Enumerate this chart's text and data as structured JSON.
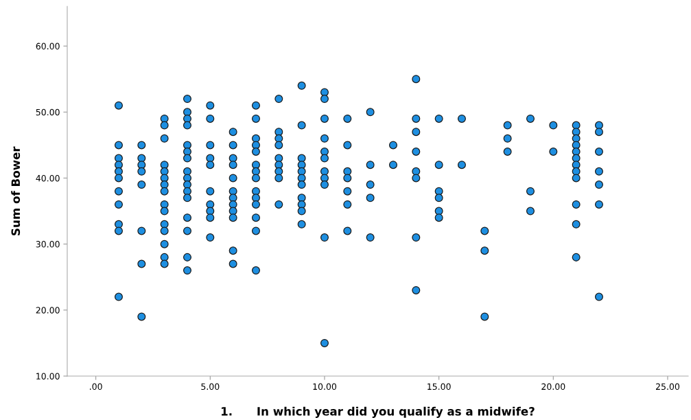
{
  "chart_data": {
    "type": "scatter",
    "xlabel": "1.      In which year did you qualify as a midwife?",
    "ylabel": "Sum of Bower",
    "series": [
      {
        "color": "#1e8fe1",
        "x": [
          1,
          1,
          1,
          1,
          1,
          1,
          1,
          1,
          1,
          1,
          1,
          2,
          2,
          2,
          2,
          2,
          2,
          2,
          2,
          3,
          3,
          3,
          3,
          3,
          3,
          3,
          3,
          3,
          3,
          3,
          3,
          3,
          3,
          3,
          4,
          4,
          4,
          4,
          4,
          4,
          4,
          4,
          4,
          4,
          4,
          4,
          4,
          4,
          4,
          4,
          5,
          5,
          5,
          5,
          5,
          5,
          5,
          5,
          5,
          5,
          6,
          6,
          6,
          6,
          6,
          6,
          6,
          6,
          6,
          6,
          6,
          6,
          7,
          7,
          7,
          7,
          7,
          7,
          7,
          7,
          7,
          7,
          7,
          7,
          7,
          7,
          8,
          8,
          8,
          8,
          8,
          8,
          8,
          8,
          8,
          9,
          9,
          9,
          9,
          9,
          9,
          9,
          9,
          9,
          9,
          9,
          10,
          10,
          10,
          10,
          10,
          10,
          10,
          10,
          10,
          10,
          10,
          11,
          11,
          11,
          11,
          11,
          11,
          11,
          12,
          12,
          12,
          12,
          12,
          13,
          13,
          14,
          14,
          14,
          14,
          14,
          14,
          14,
          14,
          15,
          15,
          15,
          15,
          15,
          15,
          16,
          16,
          17,
          17,
          17,
          18,
          18,
          18,
          19,
          19,
          19,
          20,
          20,
          21,
          21,
          21,
          21,
          21,
          21,
          21,
          21,
          21,
          21,
          21,
          21,
          22,
          22,
          22,
          22,
          22,
          22,
          22
        ],
        "values": [
          51,
          45,
          43,
          42,
          41,
          40,
          38,
          36,
          33,
          32,
          22,
          45,
          43,
          42,
          41,
          39,
          32,
          27,
          19,
          49,
          48,
          46,
          42,
          41,
          40,
          39,
          38,
          36,
          35,
          33,
          32,
          30,
          28,
          27,
          52,
          50,
          49,
          48,
          45,
          44,
          43,
          41,
          40,
          39,
          38,
          37,
          34,
          32,
          28,
          26,
          51,
          49,
          45,
          43,
          42,
          38,
          36,
          35,
          34,
          31,
          47,
          45,
          43,
          42,
          40,
          38,
          37,
          36,
          35,
          34,
          29,
          27,
          51,
          49,
          46,
          45,
          44,
          42,
          41,
          40,
          38,
          37,
          36,
          34,
          32,
          26,
          52,
          47,
          46,
          45,
          43,
          42,
          41,
          40,
          36,
          54,
          48,
          43,
          42,
          41,
          40,
          39,
          37,
          36,
          35,
          33,
          53,
          52,
          49,
          46,
          44,
          43,
          41,
          40,
          39,
          31,
          15,
          49,
          45,
          41,
          40,
          38,
          36,
          32,
          50,
          42,
          39,
          37,
          31,
          45,
          42,
          55,
          49,
          47,
          44,
          41,
          40,
          31,
          23,
          49,
          42,
          38,
          37,
          35,
          34,
          49,
          42,
          32,
          29,
          19,
          48,
          46,
          44,
          49,
          38,
          35,
          48,
          44,
          48,
          47,
          46,
          45,
          44,
          43,
          42,
          41,
          40,
          36,
          33,
          28,
          48,
          47,
          44,
          41,
          39,
          36,
          22
        ]
      }
    ],
    "xlim": [
      -1.25,
      25.9
    ],
    "ylim": [
      10,
      66
    ],
    "xticks": [
      {
        "value": 0,
        "label": ".00"
      },
      {
        "value": 5,
        "label": "5.00"
      },
      {
        "value": 10,
        "label": "10.00"
      },
      {
        "value": 15,
        "label": "15.00"
      },
      {
        "value": 20,
        "label": "20.00"
      },
      {
        "value": 25,
        "label": "25.00"
      }
    ],
    "yticks": [
      {
        "value": 10,
        "label": "10.00"
      },
      {
        "value": 20,
        "label": "20.00"
      },
      {
        "value": 30,
        "label": "30.00"
      },
      {
        "value": 40,
        "label": "40.00"
      },
      {
        "value": 50,
        "label": "50.00"
      },
      {
        "value": 60,
        "label": "60.00"
      }
    ],
    "marker": "circle",
    "grid": false,
    "legend": false
  }
}
